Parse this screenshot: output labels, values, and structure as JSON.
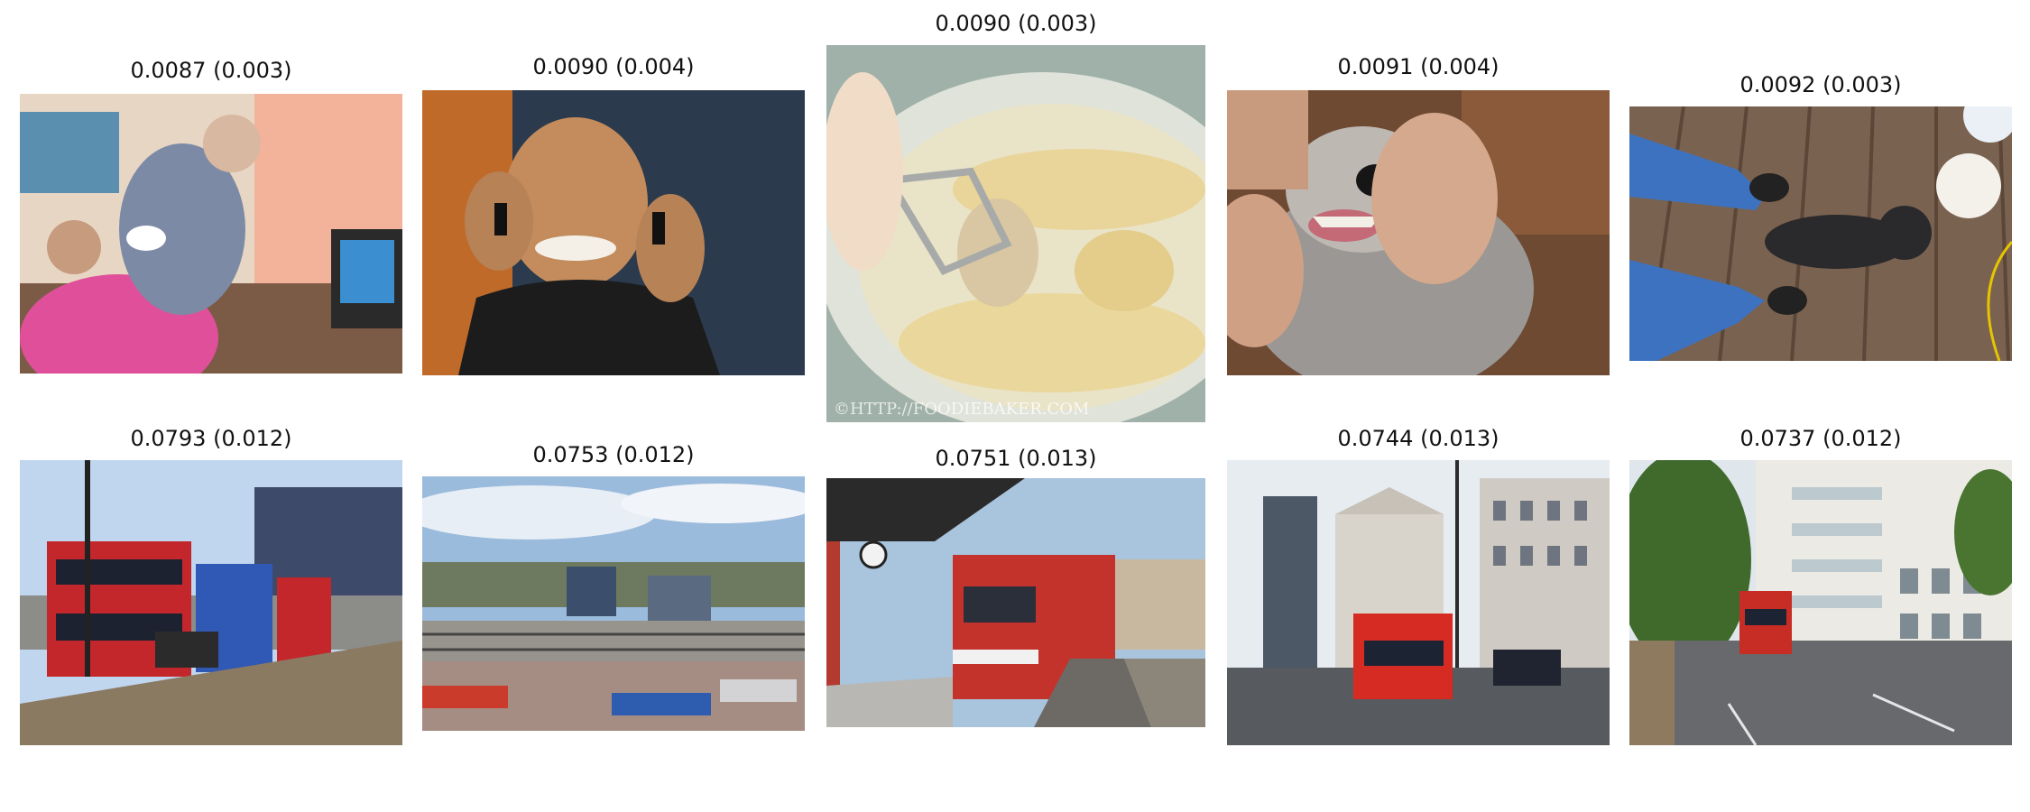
{
  "top_row": [
    {
      "caption": "0.0087 (0.003)",
      "subject": "caregiver wearing gloves helping a woman in a pink top with eye drops, television beside them"
    },
    {
      "caption": "0.0090 (0.004)",
      "subject": "smiling man holding two mobile phones to his ears"
    },
    {
      "caption": "0.0090 (0.003)",
      "subject": "bowl of bananas being mashed with a hand mixer beater",
      "watermark": "©HTTP://FOODIEBAKER.COM"
    },
    {
      "caption": "0.0091 (0.004)",
      "subject": "hands holding open a dog's mouth to show its teeth"
    },
    {
      "caption": "0.0092 (0.003)",
      "subject": "black cat between a person's feet on a wooden deck"
    }
  ],
  "bottom_row": [
    {
      "caption": "0.0793 (0.012)",
      "subject": "red and blue double-decker buses on a bridge with pedestrians"
    },
    {
      "caption": "0.0753 (0.012)",
      "subject": "bus station seen from above with buildings and cloudy sky"
    },
    {
      "caption": "0.0751 (0.013)",
      "subject": "red tram at a station platform with clock"
    },
    {
      "caption": "0.0744 (0.013)",
      "subject": "red double-decker bus on a street between stone buildings"
    },
    {
      "caption": "0.0737 (0.012)",
      "subject": "red double-decker bus on a tree-lined road next to white apartment blocks"
    }
  ]
}
